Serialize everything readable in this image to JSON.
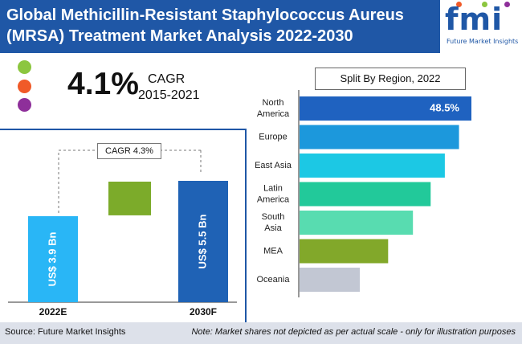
{
  "header": {
    "title_line1": "Global Methicillin-Resistant Staphylococcus Aureus",
    "title_line2": "(MRSA) Treatment Market Analysis 2022-2030"
  },
  "logo": {
    "mark": "fmi",
    "tagline": "Future Market Insights"
  },
  "legend_dots": [
    {
      "name": "green-dot",
      "color": "#8cc63f"
    },
    {
      "name": "orange-dot",
      "color": "#f05a28"
    },
    {
      "name": "purple-dot",
      "color": "#8e2f9a"
    }
  ],
  "cagr_summary": {
    "value": "4.1%",
    "label": "CAGR",
    "period": "2015-2021"
  },
  "region_panel": {
    "title": "Split By Region, 2022",
    "top_value_label": "48.5%"
  },
  "footer": {
    "source": "Source: Future Market Insights",
    "note": "Note: Market shares not depicted as per actual scale - only for illustration purposes"
  },
  "chart_data": [
    {
      "type": "bar",
      "categories": [
        "2022E",
        "2030F"
      ],
      "values": [
        3.9,
        5.5
      ],
      "value_labels": [
        "US$ 3.9 Bn",
        "US$ 5.5 Bn"
      ],
      "annotation": "CAGR 4.3%",
      "colors": [
        "#29b6f6",
        "#1f62b5"
      ],
      "increment_color": "#7cab2a"
    },
    {
      "type": "bar",
      "orientation": "horizontal",
      "title": "Split By Region, 2022",
      "categories": [
        "North America",
        "Europe",
        "East Asia",
        "Latin America",
        "South Asia",
        "MEA",
        "Oceania"
      ],
      "category_lines": [
        [
          "North",
          "America"
        ],
        [
          "Europe"
        ],
        [
          "East Asia"
        ],
        [
          "Latin",
          "America"
        ],
        [
          "South",
          "Asia"
        ],
        [
          "MEA"
        ],
        [
          "Oceania"
        ]
      ],
      "values": [
        48.5,
        45,
        41,
        37,
        32,
        25,
        17
      ],
      "data_labels": [
        "48.5%",
        "",
        "",
        "",
        "",
        "",
        ""
      ],
      "colors": [
        "#1f62c0",
        "#1c98dc",
        "#1cc8e4",
        "#22c99a",
        "#58dcb0",
        "#82a82a",
        "#c2c7d3"
      ]
    }
  ]
}
